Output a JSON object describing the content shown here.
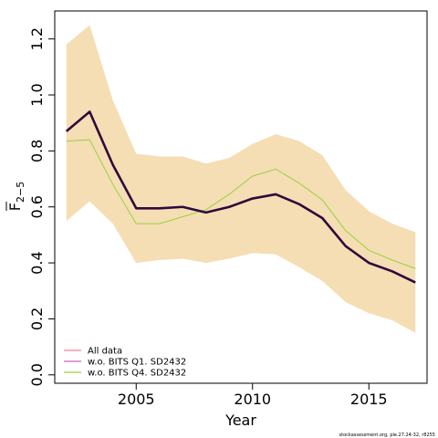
{
  "chart_data": {
    "type": "line",
    "xlabel": "Year",
    "ylabel_main": "F",
    "ylabel_sub": "2−5",
    "xlim": [
      2001.5,
      2017.5
    ],
    "ylim": [
      -0.03,
      1.3
    ],
    "x_ticks": [
      2005,
      2010,
      2015
    ],
    "x_tick_labels": [
      "2005",
      "2010",
      "2015"
    ],
    "y_ticks": [
      0.0,
      0.2,
      0.4,
      0.6,
      0.8,
      1.0,
      1.2
    ],
    "y_tick_labels": [
      "0.0",
      "0.2",
      "0.4",
      "0.6",
      "0.8",
      "1.0",
      "1.2"
    ],
    "grid": false,
    "legend_position": "bottom-left",
    "x": [
      2002,
      2003,
      2004,
      2005,
      2006,
      2007,
      2008,
      2009,
      2010,
      2011,
      2012,
      2013,
      2014,
      2015,
      2016,
      2017
    ],
    "band": {
      "color": "#f5deb3",
      "lower": [
        0.55,
        0.62,
        0.54,
        0.4,
        0.41,
        0.415,
        0.4,
        0.415,
        0.435,
        0.43,
        0.385,
        0.335,
        0.26,
        0.22,
        0.195,
        0.15
      ],
      "upper": [
        1.18,
        1.25,
        0.98,
        0.79,
        0.78,
        0.78,
        0.755,
        0.775,
        0.825,
        0.86,
        0.835,
        0.785,
        0.66,
        0.585,
        0.54,
        0.51
      ]
    },
    "series": [
      {
        "name": "All data",
        "color": "#fa7d9b",
        "legend_only": true,
        "values": [
          0.87,
          0.94,
          0.75,
          0.595,
          0.595,
          0.6,
          0.58,
          0.6,
          0.63,
          0.645,
          0.61,
          0.56,
          0.46,
          0.4,
          0.37,
          0.33
        ]
      },
      {
        "name": "w.o. BITS Q1. SD2432",
        "color": "#c864c8",
        "legend_only": true,
        "values": [
          0.87,
          0.94,
          0.75,
          0.595,
          0.595,
          0.6,
          0.58,
          0.6,
          0.63,
          0.645,
          0.61,
          0.56,
          0.46,
          0.4,
          0.37,
          0.33
        ]
      },
      {
        "name": "w.o. BITS Q4. SD2432",
        "color": "#96d241",
        "values": [
          0.835,
          0.84,
          0.68,
          0.54,
          0.54,
          0.565,
          0.59,
          0.645,
          0.71,
          0.735,
          0.685,
          0.625,
          0.515,
          0.445,
          0.41,
          0.38
        ]
      },
      {
        "name": "",
        "color": "#2d0a3c",
        "thick": true,
        "values": [
          0.87,
          0.94,
          0.75,
          0.595,
          0.595,
          0.6,
          0.58,
          0.6,
          0.63,
          0.645,
          0.61,
          0.56,
          0.46,
          0.4,
          0.37,
          0.33
        ]
      }
    ],
    "footer": "stockassessment.org, ple.27.24-32, r8255"
  }
}
